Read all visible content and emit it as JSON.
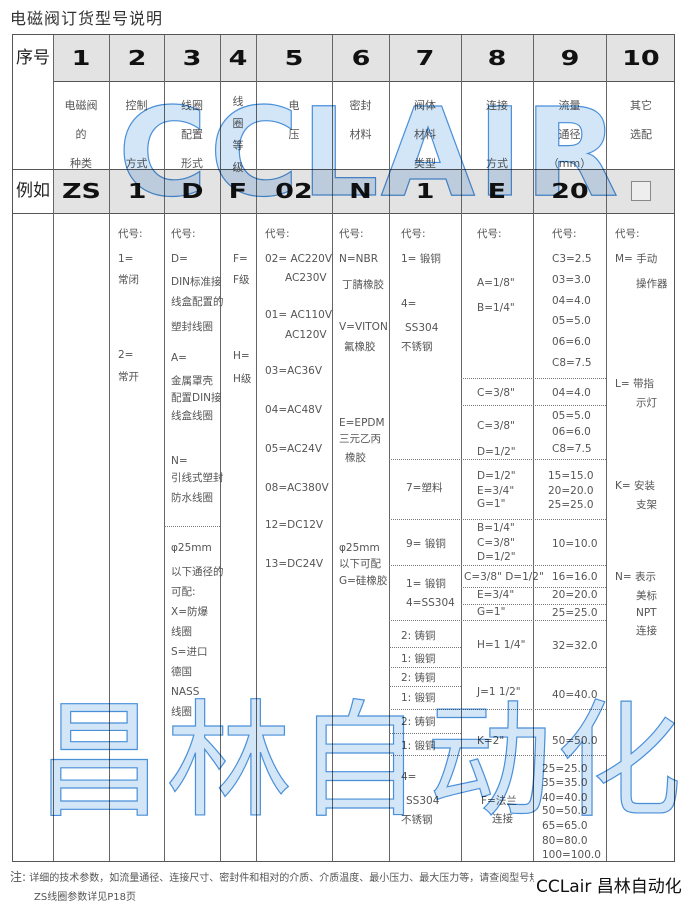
{
  "title": "电磁阀订货型号说明",
  "row_labels": {
    "index": "序号",
    "example": "例如"
  },
  "columns": [
    {
      "num": "1",
      "desc": [
        "电磁阀",
        "的",
        "种类"
      ],
      "example": "ZS"
    },
    {
      "num": "2",
      "desc": [
        "控制",
        "",
        "方式"
      ],
      "example": "1"
    },
    {
      "num": "3",
      "desc": [
        "线圈",
        "配置",
        "形式"
      ],
      "example": "D"
    },
    {
      "num": "4",
      "desc": [
        "线",
        "圈",
        "等",
        "级"
      ],
      "example": "F"
    },
    {
      "num": "5",
      "desc": [
        "电",
        "压",
        ""
      ],
      "example": "02"
    },
    {
      "num": "6",
      "desc": [
        "密封",
        "材料",
        ""
      ],
      "example": "N"
    },
    {
      "num": "7",
      "desc": [
        "阀体",
        "材料",
        "类型"
      ],
      "example": "1"
    },
    {
      "num": "8",
      "desc": [
        "连接",
        "",
        "方式"
      ],
      "example": "E"
    },
    {
      "num": "9",
      "desc": [
        "流量",
        "通径",
        "（mm）"
      ],
      "example": "20"
    },
    {
      "num": "10",
      "desc": [
        "其它",
        "选配",
        ""
      ],
      "example": "checkbox"
    }
  ],
  "body": {
    "col2": [
      "代号:",
      "1=",
      "常闭",
      "2=",
      "常开"
    ],
    "col3": [
      "代号:",
      "D=",
      "DIN标准接",
      "线盒配置的",
      "塑封线圈",
      "A=",
      "金属罩壳",
      "配置DIN接",
      "线盒线圈",
      "N=",
      "引线式塑封",
      "防水线圈",
      "φ25mm",
      "以下通径的",
      "可配:",
      "X=防爆",
      "线圈",
      "S=进口",
      "德国",
      "NASS",
      "线圈"
    ],
    "col4": [
      "F=",
      "F级",
      "H=",
      "H级"
    ],
    "col5": [
      "代号:",
      "02= AC220V",
      "AC230V",
      "01= AC110V",
      "AC120V",
      "03=AC36V",
      "04=AC48V",
      "05=AC24V",
      "08=AC380V",
      "12=DC12V",
      "13=DC24V"
    ],
    "col6": [
      "代号:",
      "N=NBR",
      "丁腈橡胶",
      "V=VITON",
      "氟橡胶",
      "E=EPDM",
      "三元乙丙",
      "橡胶",
      "φ25mm",
      "以下可配",
      "G=硅橡胶"
    ],
    "col7": [
      "代号:",
      "1= 锻铜",
      "4=",
      "SS304",
      "不锈钢",
      "7=塑料",
      "9= 锻铜",
      "1= 锻铜",
      "4=SS304",
      "2: 铸铜",
      "1: 锻铜",
      "2: 铸铜",
      "1: 锻铜",
      "2: 铸铜",
      "1: 锻铜",
      "4=",
      "SS304",
      "不锈钢"
    ],
    "col8": [
      "代号:",
      "A=1/8\"",
      "B=1/4\"",
      "C=3/8\"",
      "C=3/8\"",
      "D=1/2\"",
      "D=1/2\"",
      "E=3/4\"",
      "G=1\"",
      "B=1/4\"",
      "C=3/8\"",
      "D=1/2\"",
      "C=3/8\" D=1/2\"",
      "E=3/4\"",
      "G=1\"",
      "H=1 1/4\"",
      "J=1 1/2\"",
      "K=2\"",
      "F=法兰",
      "连接"
    ],
    "col9": [
      "代号:",
      "C3=2.5",
      "03=3.0",
      "04=4.0",
      "05=5.0",
      "06=6.0",
      "C8=7.5",
      "04=4.0",
      "05=5.0",
      "06=6.0",
      "C8=7.5",
      "15=15.0",
      "20=20.0",
      "25=25.0",
      "10=10.0",
      "16=16.0",
      "20=20.0",
      "25=25.0",
      "32=32.0",
      "40=40.0",
      "50=50.0",
      "25=25.0",
      "35=35.0",
      "40=40.0",
      "50=50.0",
      "65=65.0",
      "80=80.0",
      "100=100.0"
    ],
    "col10": [
      "代号:",
      "M= 手动",
      "操作器",
      "L= 带指",
      "示灯",
      "K= 安装",
      "支架",
      "N= 表示",
      "美标",
      "NPT",
      "连接"
    ]
  },
  "watermarks": {
    "top": "CCLAIR",
    "bottom": "昌林自动化"
  },
  "note": {
    "label": "注:",
    "line1": "详细的技术参数，如流量通径、连接尺寸、密封件和相对的介质、介质温度、最小压力、最大压力等，请查阅型号规格中的技术参数",
    "line2": "ZS线圈参数详见P18页"
  },
  "brand": "CCLair 昌林自动化",
  "colors": {
    "header_band": "#e3e3e3",
    "watermark": "#4a90d9",
    "border": "#555555"
  }
}
